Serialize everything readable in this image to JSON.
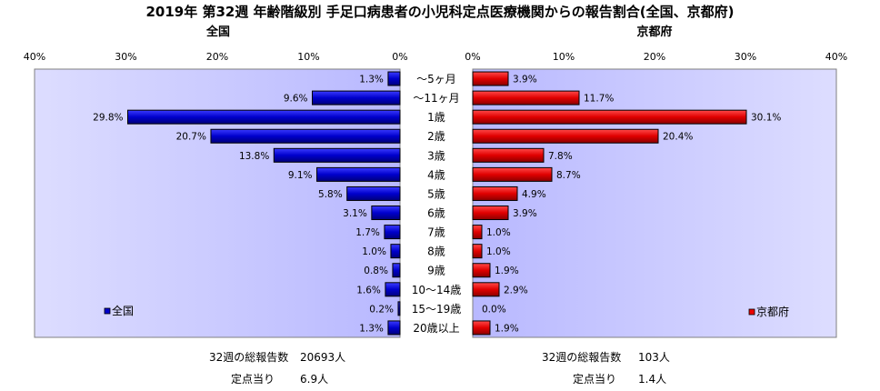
{
  "chart_data": {
    "type": "bar",
    "title": "2019年 第32週 年齢階級別 手足口病患者の小児科定点医療機関からの報告割合(全国、京都府)",
    "categories": [
      "～5ヶ月",
      "～11ヶ月",
      "1歳",
      "2歳",
      "3歳",
      "4歳",
      "5歳",
      "6歳",
      "7歳",
      "8歳",
      "9歳",
      "10～14歳",
      "15～19歳",
      "20歳以上"
    ],
    "xlim": [
      0,
      40
    ],
    "ticks": [
      "40%",
      "30%",
      "20%",
      "10%",
      "0%"
    ],
    "ticks_right": [
      "0%",
      "10%",
      "20%",
      "30%",
      "40%"
    ],
    "tick_values": [
      40,
      30,
      20,
      10,
      0
    ],
    "grid": false,
    "series": [
      {
        "name": "全国",
        "panel_title": "全国",
        "color": "#0000cc",
        "values": [
          1.3,
          9.6,
          29.8,
          20.7,
          13.8,
          9.1,
          5.8,
          3.1,
          1.7,
          1.0,
          0.8,
          1.6,
          0.2,
          1.3
        ],
        "labels": [
          "1.3%",
          "9.6%",
          "29.8%",
          "20.7%",
          "13.8%",
          "9.1%",
          "5.8%",
          "3.1%",
          "1.7%",
          "1.0%",
          "0.8%",
          "1.6%",
          "0.2%",
          "1.3%"
        ]
      },
      {
        "name": "京都府",
        "panel_title": "京都府",
        "color": "#ee0000",
        "values": [
          3.9,
          11.7,
          30.1,
          20.4,
          7.8,
          8.7,
          4.9,
          3.9,
          1.0,
          1.0,
          1.9,
          2.9,
          0.0,
          1.9
        ],
        "labels": [
          "3.9%",
          "11.7%",
          "30.1%",
          "20.4%",
          "7.8%",
          "8.7%",
          "4.9%",
          "3.9%",
          "1.0%",
          "1.0%",
          "1.9%",
          "2.9%",
          "0.0%",
          "1.9%"
        ]
      }
    ]
  },
  "footer": {
    "national": {
      "total_label": "32週の総報告数",
      "total_value": "20693人",
      "per_label": "定点当り",
      "per_value": "6.9人"
    },
    "kyoto": {
      "total_label": "32週の総報告数",
      "total_value": "103人",
      "per_label": "定点当り",
      "per_value": "1.4人"
    }
  }
}
